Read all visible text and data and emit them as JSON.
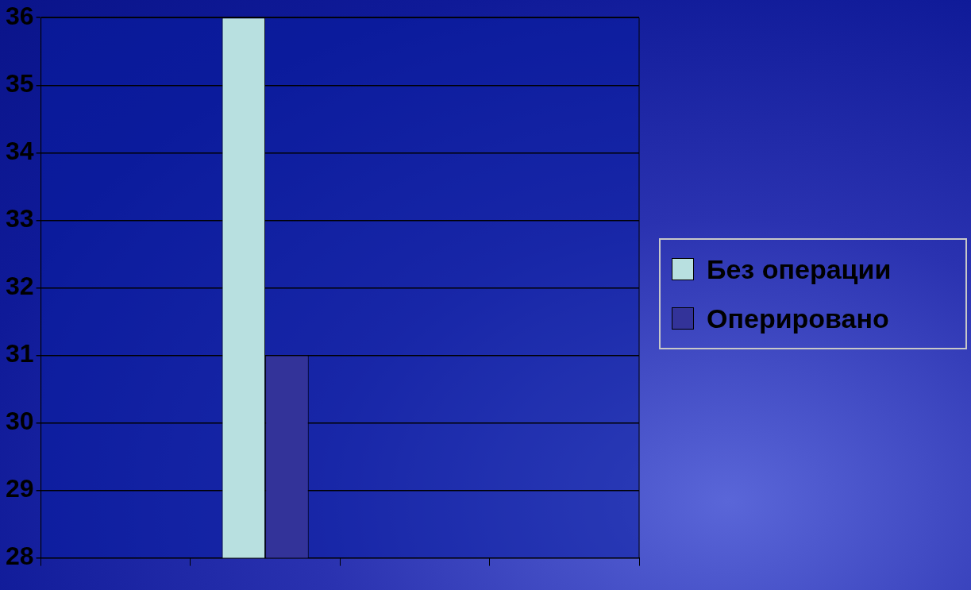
{
  "chart_data": {
    "type": "bar",
    "categories": [
      null,
      null,
      null,
      null
    ],
    "series": [
      {
        "name": "Без операции",
        "color": "#b8e0e0",
        "values": [
          null,
          36,
          null,
          null
        ]
      },
      {
        "name": "Оперировано",
        "color": "#333399",
        "values": [
          null,
          31,
          null,
          null
        ]
      }
    ],
    "ylim": [
      28,
      36
    ],
    "yticks": [
      28,
      29,
      30,
      31,
      32,
      33,
      34,
      35,
      36
    ],
    "grid": "y",
    "legend": "right"
  }
}
